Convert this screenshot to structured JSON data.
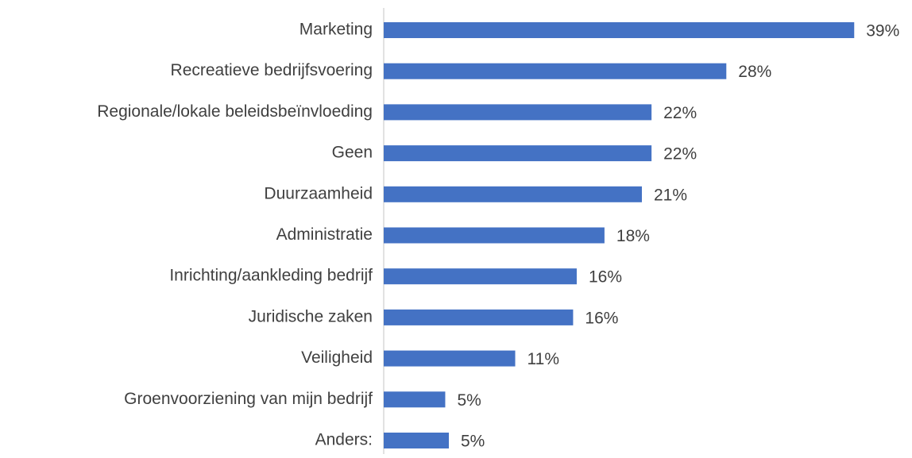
{
  "chart_data": {
    "type": "bar",
    "orientation": "horizontal",
    "categories": [
      "Marketing",
      "Recreatieve bedrijfsvoering",
      "Regionale/lokale beleidsbeïnvloeding",
      "Geen",
      "Duurzaamheid",
      "Administratie",
      "Inrichting/aankleding bedrijf",
      "Juridische zaken",
      "Veiligheid",
      "Groenvoorziening van mijn bedrijf",
      "Anders:"
    ],
    "values": [
      39,
      28.4,
      22.2,
      22.2,
      21.4,
      18.3,
      16.0,
      15.7,
      10.9,
      5.1,
      5.4
    ],
    "value_labels": [
      "39%",
      "28%",
      "22%",
      "22%",
      "21%",
      "18%",
      "16%",
      "16%",
      "11%",
      "5%",
      "5%"
    ],
    "color": "#4472c4",
    "xlim": [
      0,
      43
    ]
  }
}
